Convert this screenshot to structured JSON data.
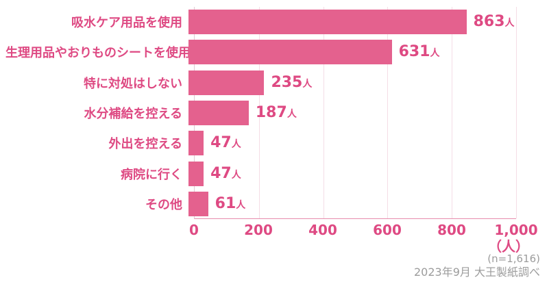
{
  "chart_data": {
    "type": "bar",
    "orientation": "horizontal",
    "categories": [
      "吸水ケア用品を使用",
      "生理用品やおりものシートを使用",
      "特に対処はしない",
      "水分補給を控える",
      "外出を控える",
      "病院に行く",
      "その他"
    ],
    "values": [
      863,
      631,
      235,
      187,
      47,
      47,
      61
    ],
    "value_unit": "人",
    "title": "",
    "xlabel": "",
    "ylabel": "",
    "xlim": [
      0,
      1000
    ],
    "x_ticks": [
      "0",
      "200",
      "400",
      "600",
      "800",
      "1,000"
    ],
    "axis_unit_label": "（人）",
    "grid": "vertical-on",
    "legend": "none",
    "notes": {
      "sample_size": "(n=1,616)",
      "source": "2023年9月 大王製紙調べ"
    }
  },
  "colors": {
    "bar": "#E4618E",
    "label_text": "#DE4A83",
    "tick_text": "#DE4A83",
    "gridline": "#F4DDE6",
    "axis_line": "#E78CAC",
    "left_axis_line": "#DFCBD3",
    "note_text": "#9C9C9C",
    "background": "#FFFFFF"
  }
}
